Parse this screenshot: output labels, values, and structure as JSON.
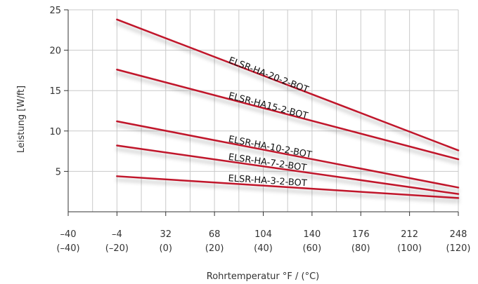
{
  "chart_data": {
    "type": "line",
    "title": "",
    "xlabel": "Rohrtemperatur °F / (°C)",
    "ylabel": "Leistung [W/ft]",
    "x_unit": "°F",
    "xlim": [
      -40,
      248
    ],
    "ylim": [
      0,
      25
    ],
    "grid": true,
    "x_ticks": [
      {
        "f": "–40",
        "c": "(–40)",
        "value": -40
      },
      {
        "f": "–4",
        "c": "(–20)",
        "value": -4
      },
      {
        "f": "32",
        "c": "(0)",
        "value": 32
      },
      {
        "f": "68",
        "c": "(20)",
        "value": 68
      },
      {
        "f": "104",
        "c": "(40)",
        "value": 104
      },
      {
        "f": "140",
        "c": "(60)",
        "value": 140
      },
      {
        "f": "176",
        "c": "(80)",
        "value": 176
      },
      {
        "f": "212",
        "c": "(100)",
        "value": 212
      },
      {
        "f": "248",
        "c": "(120)",
        "value": 248
      }
    ],
    "y_ticks": [
      5,
      10,
      15,
      20,
      25
    ],
    "line_color": "#c0142c",
    "series": [
      {
        "name": "ELSR-HA-20-2-BOT",
        "x": [
          -4,
          248
        ],
        "y": [
          23.8,
          7.6
        ]
      },
      {
        "name": "ELSR-HA15-2-BOT",
        "x": [
          -4,
          248
        ],
        "y": [
          17.6,
          6.5
        ]
      },
      {
        "name": "ELSR-HA-10-2-BOT",
        "x": [
          -4,
          248
        ],
        "y": [
          11.2,
          3.0
        ]
      },
      {
        "name": "ELSR-HA-7-2-BOT",
        "x": [
          -4,
          248
        ],
        "y": [
          8.2,
          2.2
        ]
      },
      {
        "name": "ELSR-HA-3-2-BOT",
        "x": [
          -4,
          248
        ],
        "y": [
          4.4,
          1.7
        ]
      }
    ]
  }
}
